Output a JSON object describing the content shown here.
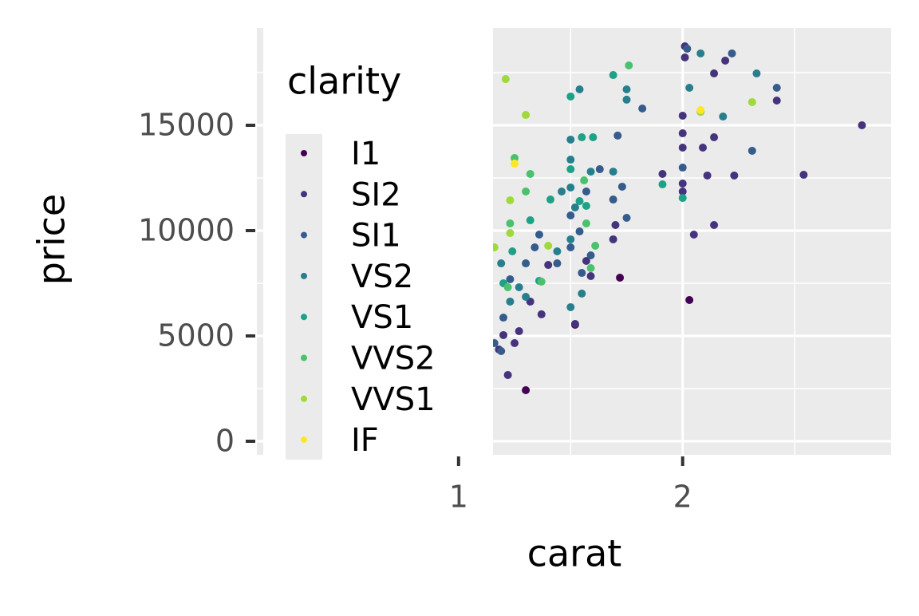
{
  "chart_data": {
    "type": "scatter",
    "x_label": "carat",
    "y_label": "price",
    "legend_title": "clarity",
    "xlim": [
      0.1,
      2.93
    ],
    "ylim": [
      -644,
      19621
    ],
    "xticks": [
      1,
      2
    ],
    "yticks": [
      0,
      5000,
      10000,
      15000
    ],
    "xminor": [
      0.5,
      1.5,
      2.5
    ],
    "yminor": [
      2500,
      7500,
      12500,
      17500
    ],
    "grid": true,
    "legend": "left",
    "series": [
      {
        "name": "I1",
        "color": "#440154",
        "x": [
          1.72,
          2.03,
          1.3,
          1.52
        ],
        "values": [
          7765,
          6705,
          2424,
          5530
        ]
      },
      {
        "name": "SI2",
        "color": "#46337E",
        "x": [
          2.01,
          2.01,
          2.14,
          2.19,
          2.08,
          2.0,
          2.0,
          2.09,
          2.0,
          2.14,
          1.91,
          2.0,
          2.11,
          2.23,
          2.54,
          2.8,
          2.42,
          2.0,
          2.05,
          2.14,
          1.7,
          1.69,
          1.57,
          1.4,
          1.37,
          1.22,
          1.2,
          1.18,
          1.25,
          1.27,
          1.32,
          1.52,
          1.59
        ],
        "values": [
          18750,
          18220,
          17460,
          18070,
          15645,
          15455,
          14620,
          13940,
          13940,
          14430,
          12690,
          12235,
          12615,
          12615,
          12650,
          15000,
          16175,
          11855,
          9810,
          10265,
          10265,
          9585,
          8560,
          8370,
          6025,
          3145,
          5040,
          4355,
          4660,
          5225,
          6630,
          5570,
          7840
        ]
      },
      {
        "name": "SI1",
        "color": "#365C8D",
        "x": [
          2.22,
          2.02,
          2.31,
          2.42,
          1.82,
          1.71,
          1.63,
          1.69,
          1.73,
          1.75,
          1.5,
          1.54,
          1.59,
          1.5,
          1.55,
          1.34,
          1.36,
          1.3,
          1.23,
          1.19,
          1.16,
          1.2,
          1.44,
          1.57,
          2.0
        ],
        "values": [
          18410,
          18635,
          13790,
          16780,
          15795,
          14510,
          12915,
          11475,
          12085,
          10605,
          10720,
          9960,
          8825,
          9205,
          7990,
          9205,
          9810,
          8445,
          7690,
          4280,
          4660,
          5870,
          8445,
          11855,
          12990
        ]
      },
      {
        "name": "VS2",
        "color": "#277F8E",
        "x": [
          2.08,
          2.33,
          2.18,
          2.03,
          1.54,
          1.75,
          1.75,
          1.5,
          1.5,
          1.59,
          1.69,
          1.5,
          1.46,
          1.52,
          1.5,
          1.55,
          1.5,
          1.27,
          1.19,
          1.23,
          1.3,
          1.44
        ],
        "values": [
          18410,
          17460,
          15415,
          16780,
          16705,
          16705,
          16215,
          14320,
          13370,
          12800,
          12800,
          12045,
          11855,
          11100,
          9585,
          7010,
          6365,
          7310,
          8445,
          6630,
          6855,
          9015
        ]
      },
      {
        "name": "VS1",
        "color": "#1FA187",
        "x": [
          1.5,
          2.0,
          1.91,
          1.69,
          1.55,
          1.6,
          1.5,
          1.41,
          1.32,
          1.24,
          1.2,
          1.54,
          1.57,
          1.36
        ],
        "values": [
          16365,
          11550,
          12195,
          17385,
          14430,
          14430,
          12915,
          11475,
          10490,
          9015,
          7500,
          11400,
          11175,
          7615
        ]
      },
      {
        "name": "VVS2",
        "color": "#4AC16D",
        "x": [
          1.76,
          1.56,
          1.32,
          1.3,
          1.61,
          1.57,
          1.23,
          1.15,
          1.22,
          1.25,
          1.59,
          1.37
        ],
        "values": [
          17840,
          12385,
          12690,
          11855,
          9280,
          10340,
          10340,
          9205,
          7310,
          13445,
          8220,
          7575
        ]
      },
      {
        "name": "VVS1",
        "color": "#9FDA3A",
        "x": [
          1.21,
          1.3,
          2.31,
          2.08,
          1.23,
          1.4,
          1.23,
          1.16
        ],
        "values": [
          17195,
          15490,
          16100,
          15645,
          11440,
          9280,
          9885,
          9205
        ]
      },
      {
        "name": "IF",
        "color": "#FDE725",
        "x": [
          1.25,
          2.08
        ],
        "values": [
          13180,
          15720
        ]
      }
    ]
  }
}
